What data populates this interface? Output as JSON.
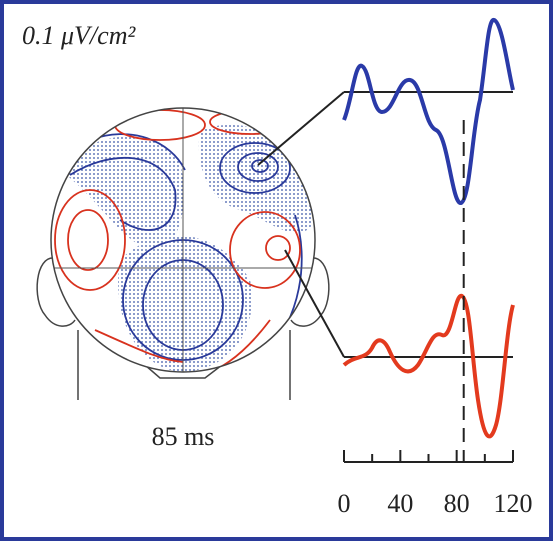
{
  "unit_label": "0.1 μV/cm²",
  "time_axis": {
    "xlim": [
      0,
      120
    ],
    "xticks": [
      0,
      40,
      80,
      120
    ]
  },
  "marker": {
    "value": 85,
    "label": "85 ms"
  }
}
